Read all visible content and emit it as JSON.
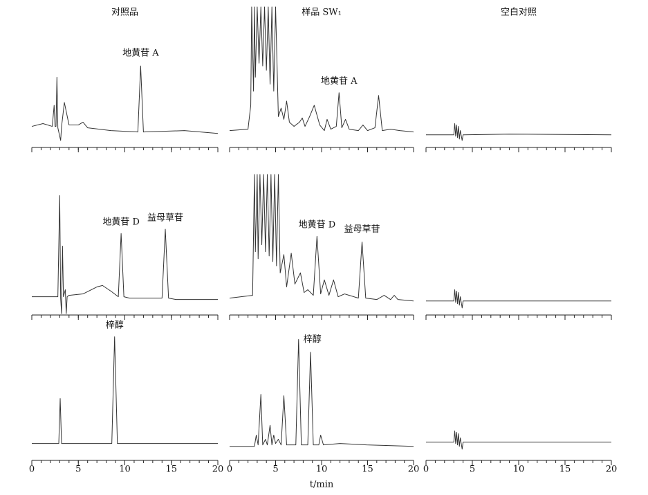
{
  "chart_data": [
    {
      "type": "line",
      "title": "对照品",
      "tick_labels": false,
      "color": "#333333",
      "xlim": [
        0,
        20
      ],
      "ylim": [
        0,
        100
      ],
      "xticks": [
        0,
        5,
        10,
        15,
        20
      ],
      "minor_xticks": [
        0,
        1,
        2,
        3,
        4,
        5,
        6,
        7,
        8,
        9,
        10,
        11,
        12,
        13,
        14,
        15,
        16,
        17,
        18,
        19,
        20
      ],
      "x": [
        0,
        1.2,
        2.2,
        2.4,
        2.5,
        2.6,
        2.7,
        2.8,
        3.1,
        3.2,
        3.5,
        4.0,
        5.0,
        5.5,
        6.0,
        8.5,
        11.4,
        11.7,
        12.0,
        16.4,
        20
      ],
      "values": [
        15,
        17,
        15,
        30,
        15,
        15,
        50,
        14,
        5,
        15,
        32,
        16,
        16,
        18,
        14,
        12,
        11,
        58,
        11,
        12,
        10
      ],
      "annotations": [
        {
          "text": "地黄苷 A",
          "x": 11.7,
          "y": 63
        }
      ]
    },
    {
      "type": "line",
      "title": "样品 SW₁",
      "tick_labels": false,
      "color": "#333333",
      "xlim": [
        0,
        20
      ],
      "ylim": [
        0,
        100
      ],
      "xticks": [
        0,
        5,
        10,
        15,
        20
      ],
      "minor_xticks": [
        0,
        1,
        2,
        3,
        4,
        5,
        6,
        7,
        8,
        9,
        10,
        11,
        12,
        13,
        14,
        15,
        16,
        17,
        18,
        19,
        20
      ],
      "x": [
        0,
        2.0,
        2.3,
        2.4,
        2.6,
        2.7,
        2.8,
        3.0,
        3.2,
        3.4,
        3.6,
        3.8,
        4.0,
        4.2,
        4.4,
        4.6,
        4.8,
        5.0,
        5.3,
        5.6,
        5.9,
        6.2,
        6.5,
        7.0,
        7.6,
        7.9,
        8.2,
        8.7,
        9.2,
        9.8,
        10.3,
        10.6,
        11.0,
        11.6,
        11.9,
        12.2,
        12.6,
        13.0,
        14.0,
        14.5,
        15.0,
        15.8,
        16.2,
        16.6,
        17.5,
        18.5,
        20
      ],
      "values": [
        12,
        13,
        30,
        100,
        40,
        100,
        50,
        100,
        60,
        100,
        58,
        100,
        55,
        100,
        45,
        100,
        40,
        100,
        22,
        28,
        20,
        33,
        18,
        15,
        18,
        21,
        15,
        22,
        30,
        16,
        12,
        20,
        13,
        15,
        39,
        14,
        20,
        13,
        12,
        16,
        12,
        14,
        37,
        12,
        13,
        12,
        11
      ],
      "annotations": [
        {
          "text": "地黄苷 A",
          "x": 11.9,
          "y": 43
        }
      ]
    },
    {
      "type": "line",
      "title": "空白对照",
      "tick_labels": false,
      "color": "#333333",
      "xlim": [
        0,
        20
      ],
      "ylim": [
        0,
        100
      ],
      "xticks": [
        0,
        5,
        10,
        15,
        20
      ],
      "minor_xticks": [
        0,
        1,
        2,
        3,
        4,
        5,
        6,
        7,
        8,
        9,
        10,
        11,
        12,
        13,
        14,
        15,
        16,
        17,
        18,
        19,
        20
      ],
      "x": [
        0,
        3.0,
        3.1,
        3.2,
        3.3,
        3.4,
        3.5,
        3.6,
        3.7,
        3.9,
        4.0,
        4.1,
        9.0,
        20
      ],
      "values": [
        9,
        9,
        17,
        8,
        16,
        7,
        15,
        6,
        12,
        5,
        9,
        9,
        9.5,
        9
      ]
    },
    {
      "type": "line",
      "tick_labels": false,
      "color": "#333333",
      "xlim": [
        0,
        20
      ],
      "ylim": [
        0,
        100
      ],
      "xticks": [
        0,
        5,
        10,
        15,
        20
      ],
      "minor_xticks": [
        0,
        1,
        2,
        3,
        4,
        5,
        6,
        7,
        8,
        9,
        10,
        11,
        12,
        13,
        14,
        15,
        16,
        17,
        18,
        19,
        20
      ],
      "x": [
        0,
        2.8,
        3.0,
        3.1,
        3.2,
        3.3,
        3.4,
        3.6,
        3.7,
        3.8,
        4.0,
        5.5,
        7.0,
        7.6,
        8.5,
        9.3,
        9.6,
        9.9,
        10.5,
        14.0,
        14.35,
        14.7,
        15.5,
        20
      ],
      "values": [
        13,
        13,
        85,
        12,
        1,
        49,
        13,
        18,
        1,
        13,
        14,
        15,
        20,
        21,
        17,
        13,
        58,
        13,
        12,
        12,
        61,
        12,
        11,
        11
      ],
      "annotations": [
        {
          "text": "地黄苷 D",
          "x": 9.6,
          "y": 62
        },
        {
          "text": "益母草苷",
          "x": 14.35,
          "y": 65
        }
      ]
    },
    {
      "type": "line",
      "tick_labels": false,
      "color": "#333333",
      "xlim": [
        0,
        20
      ],
      "ylim": [
        0,
        100
      ],
      "xticks": [
        0,
        5,
        10,
        15,
        20
      ],
      "minor_xticks": [
        0,
        1,
        2,
        3,
        4,
        5,
        6,
        7,
        8,
        9,
        10,
        11,
        12,
        13,
        14,
        15,
        16,
        17,
        18,
        19,
        20
      ],
      "x": [
        0,
        2.5,
        2.7,
        2.8,
        3.0,
        3.1,
        3.3,
        3.5,
        3.7,
        3.9,
        4.1,
        4.3,
        4.5,
        4.7,
        4.9,
        5.1,
        5.3,
        5.5,
        5.9,
        6.2,
        6.7,
        7.1,
        7.7,
        8.1,
        8.5,
        9.1,
        9.5,
        9.9,
        10.3,
        10.8,
        11.3,
        11.8,
        12.5,
        14.0,
        14.4,
        14.8,
        16.0,
        16.8,
        17.5,
        17.9,
        18.3,
        20
      ],
      "values": [
        12,
        14,
        100,
        45,
        100,
        40,
        100,
        50,
        100,
        45,
        100,
        42,
        100,
        38,
        100,
        35,
        100,
        30,
        43,
        20,
        44,
        22,
        30,
        16,
        18,
        14,
        56,
        15,
        25,
        14,
        25,
        13,
        15,
        12,
        52,
        12,
        11,
        14,
        11,
        14,
        11,
        10
      ],
      "annotations": [
        {
          "text": "地黄苷 D",
          "x": 9.5,
          "y": 60
        },
        {
          "text": "益母草苷",
          "x": 14.4,
          "y": 57
        }
      ]
    },
    {
      "type": "line",
      "tick_labels": false,
      "color": "#333333",
      "xlim": [
        0,
        20
      ],
      "ylim": [
        0,
        100
      ],
      "xticks": [
        0,
        5,
        10,
        15,
        20
      ],
      "minor_xticks": [
        0,
        1,
        2,
        3,
        4,
        5,
        6,
        7,
        8,
        9,
        10,
        11,
        12,
        13,
        14,
        15,
        16,
        17,
        18,
        19,
        20
      ],
      "x": [
        0,
        3.0,
        3.1,
        3.2,
        3.3,
        3.4,
        3.5,
        3.6,
        3.7,
        3.9,
        4.0,
        4.1,
        9.0,
        20
      ],
      "values": [
        10,
        10,
        18,
        9,
        17,
        8,
        16,
        7,
        13,
        5,
        10,
        10,
        10,
        10
      ]
    },
    {
      "type": "line",
      "tick_labels": true,
      "color": "#333333",
      "xlim": [
        0,
        20
      ],
      "ylim": [
        0,
        100
      ],
      "xticks": [
        0,
        5,
        10,
        15,
        20
      ],
      "minor_xticks": [
        0,
        1,
        2,
        3,
        4,
        5,
        6,
        7,
        8,
        9,
        10,
        11,
        12,
        13,
        14,
        15,
        16,
        17,
        18,
        19,
        20
      ],
      "x": [
        0,
        2.9,
        3.05,
        3.2,
        8.6,
        8.9,
        9.2,
        20
      ],
      "values": [
        12,
        12,
        44,
        12,
        12,
        88,
        12,
        12
      ],
      "annotations": [
        {
          "text": "梓醇",
          "x": 8.9,
          "y": 92
        }
      ]
    },
    {
      "type": "line",
      "tick_labels": true,
      "xlabel": "t/min",
      "color": "#333333",
      "xlim": [
        0,
        20
      ],
      "ylim": [
        0,
        100
      ],
      "xticks": [
        0,
        5,
        10,
        15,
        20
      ],
      "minor_xticks": [
        0,
        1,
        2,
        3,
        4,
        5,
        6,
        7,
        8,
        9,
        10,
        11,
        12,
        13,
        14,
        15,
        16,
        17,
        18,
        19,
        20
      ],
      "x": [
        0,
        2.7,
        2.9,
        3.1,
        3.4,
        3.6,
        3.9,
        4.1,
        4.4,
        4.6,
        4.8,
        5.0,
        5.3,
        5.6,
        5.9,
        6.2,
        7.2,
        7.5,
        7.8,
        8.5,
        8.8,
        9.1,
        9.7,
        9.9,
        10.2,
        12.0,
        14.9,
        20
      ],
      "values": [
        10,
        10,
        18,
        11,
        47,
        11,
        15,
        11,
        25,
        11,
        18,
        12,
        15,
        11,
        46,
        11,
        11,
        86,
        11,
        11,
        77,
        11,
        11,
        18,
        11,
        12,
        11,
        10
      ],
      "annotations": [
        {
          "text": "梓醇",
          "x": 9.0,
          "y": 82
        }
      ]
    },
    {
      "type": "line",
      "tick_labels": true,
      "color": "#333333",
      "xlim": [
        0,
        20
      ],
      "ylim": [
        0,
        100
      ],
      "xticks": [
        0,
        5,
        10,
        15,
        20
      ],
      "minor_xticks": [
        0,
        1,
        2,
        3,
        4,
        5,
        6,
        7,
        8,
        9,
        10,
        11,
        12,
        13,
        14,
        15,
        16,
        17,
        18,
        19,
        20
      ],
      "x": [
        0,
        3.0,
        3.1,
        3.2,
        3.3,
        3.4,
        3.5,
        3.6,
        3.7,
        3.9,
        4.0,
        4.1,
        9.0,
        20
      ],
      "values": [
        13,
        13,
        21,
        12,
        20,
        11,
        19,
        10,
        16,
        8,
        13,
        13,
        13,
        13
      ]
    }
  ]
}
